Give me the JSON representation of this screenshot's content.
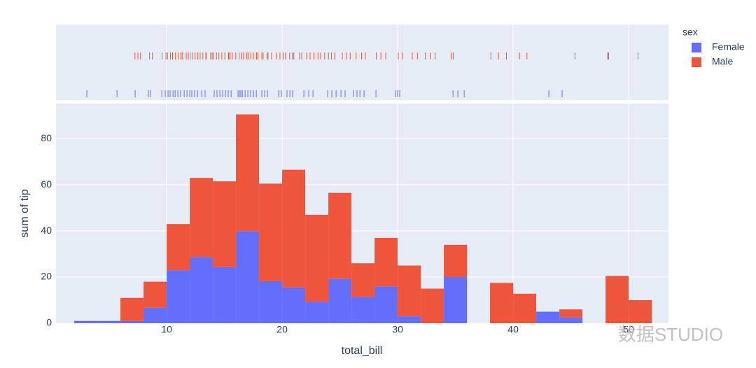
{
  "chart_data": {
    "type": "histogram",
    "x_label": "total_bill",
    "y_label": "sum of tip",
    "legend_title": "sex",
    "legend_position": "right",
    "bins": [
      2,
      4,
      6,
      8,
      10,
      12,
      14,
      16,
      18,
      20,
      22,
      24,
      26,
      28,
      30,
      32,
      34,
      36,
      38,
      40,
      42,
      44,
      46,
      48,
      50,
      52
    ],
    "barmode": "stack",
    "series": [
      {
        "name": "Female",
        "color": "#636efa",
        "values": [
          1,
          1,
          1,
          6.7,
          23,
          28.7,
          24.3,
          39.9,
          18.2,
          15.5,
          9.3,
          19.3,
          11.4,
          16,
          3,
          0,
          20,
          0,
          0,
          0,
          5,
          2.5,
          0,
          0,
          0
        ],
        "rug": [
          3.09,
          5.7,
          7.27,
          8.42,
          8.61,
          9.58,
          9.88,
          10.12,
          10.3,
          10.55,
          10.73,
          10.97,
          11.21,
          11.52,
          11.76,
          12,
          12.18,
          12.42,
          12.67,
          13.03,
          13.33,
          14.12,
          14.36,
          14.61,
          14.85,
          15.09,
          15.33,
          15.58,
          16.18,
          16.3,
          16.42,
          16.55,
          16.79,
          17.03,
          17.27,
          17.52,
          17.76,
          18.24,
          18.48,
          18.73,
          19.7,
          19.94,
          20.42,
          20.67,
          20.91,
          21.88,
          22.3,
          22.67,
          23.94,
          24.3,
          24.67,
          25.09,
          25.45,
          26.18,
          26.48,
          26.73,
          27.09,
          28.12,
          29.82,
          30,
          30.18,
          34.79,
          35.21,
          35.76,
          43.09,
          44.24
        ]
      },
      {
        "name": "Male",
        "color": "#EF553B",
        "values": [
          0,
          0,
          10,
          11.3,
          20,
          34.3,
          37.2,
          50.6,
          42.3,
          51,
          37.7,
          37.2,
          14.6,
          21,
          22,
          15,
          14,
          0,
          17.5,
          12.8,
          0,
          3.5,
          0,
          20.5,
          10
        ],
        "rug": [
          7.25,
          7.51,
          7.74,
          8.52,
          8.77,
          9.6,
          9.94,
          10.07,
          10.33,
          10.51,
          10.77,
          11.02,
          11.24,
          11.38,
          11.69,
          11.87,
          12.03,
          12.26,
          12.46,
          12.69,
          12.9,
          13.13,
          13.39,
          13.42,
          13.81,
          13.94,
          14.07,
          14.31,
          14.52,
          14.78,
          15.04,
          15.36,
          15.48,
          15.69,
          15.98,
          16.27,
          16.45,
          16.66,
          16.93,
          17.07,
          17.29,
          17.51,
          17.78,
          17.92,
          18.24,
          18.35,
          18.69,
          18.78,
          19.08,
          19.49,
          19.81,
          20.08,
          20.29,
          20.65,
          20.9,
          21.01,
          21.5,
          21.7,
          22.12,
          22.42,
          22.76,
          23.1,
          23.33,
          23.68,
          24.01,
          24.27,
          24.55,
          25.21,
          25.56,
          25.89,
          26.41,
          26.88,
          27.2,
          28.15,
          28.55,
          28.97,
          30.06,
          30.4,
          31.27,
          31.71,
          32.4,
          32.83,
          33.25,
          34.63,
          34.81,
          38.07,
          38.73,
          39.42,
          40.55,
          41.19,
          45.35,
          48.17,
          48.27,
          50.81
        ]
      }
    ],
    "xlim": [
      0.42,
      53.45
    ],
    "xticks": [
      10,
      20,
      30,
      40,
      50
    ],
    "ylim": [
      0,
      95.2
    ],
    "yticks": [
      0,
      20,
      40,
      60,
      80
    ],
    "grid": true,
    "watermark": "数据STUDIO"
  }
}
